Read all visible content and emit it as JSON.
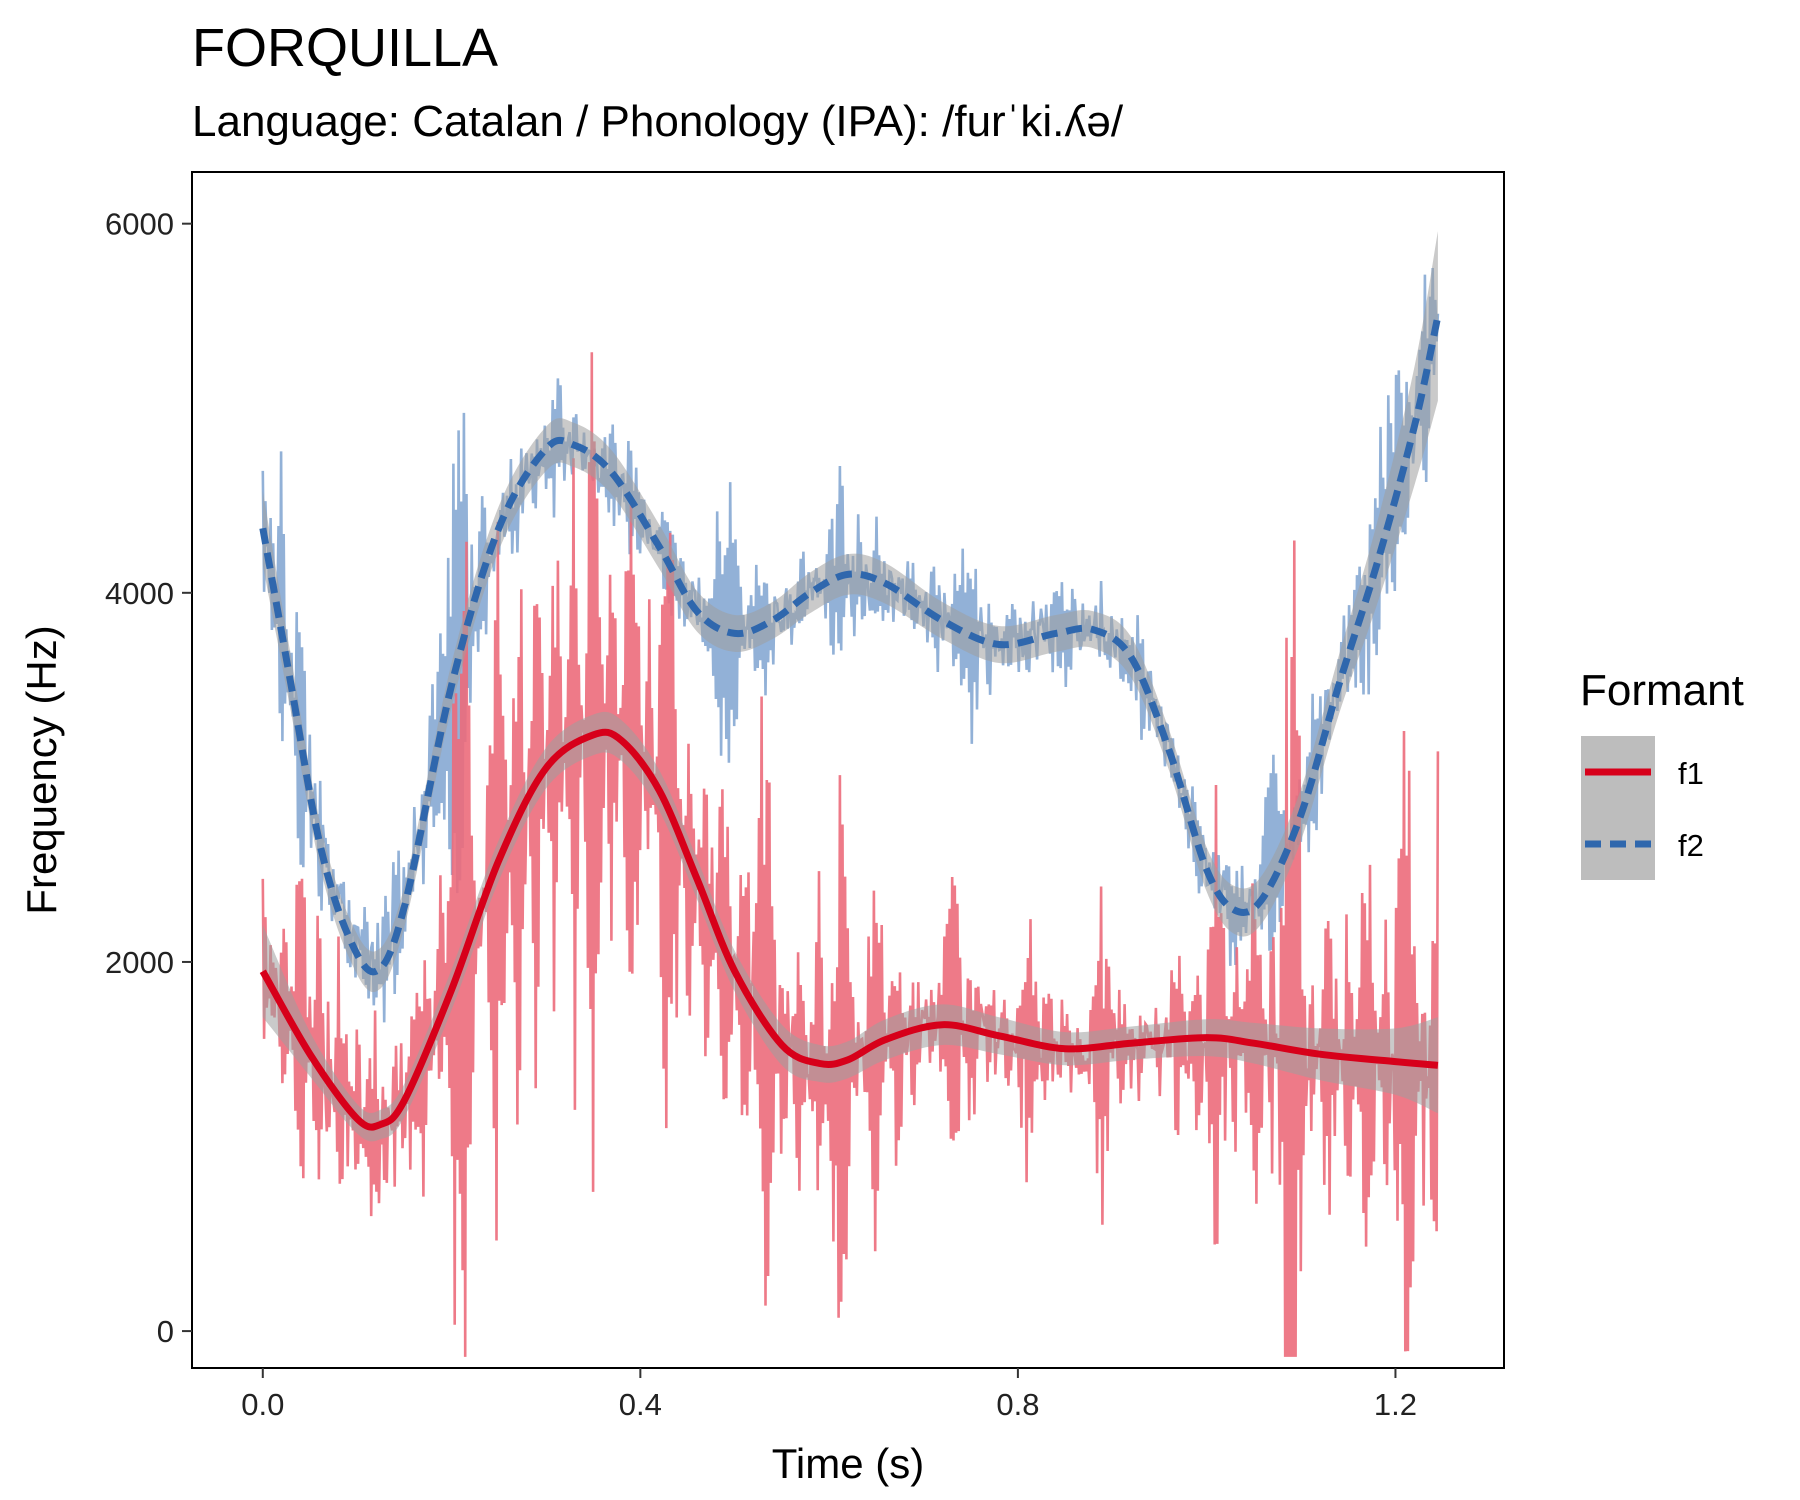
{
  "chart_data": {
    "type": "line",
    "title": "FORQUILLA",
    "subtitle": "Language: Catalan / Phonology (IPA): /furˈki.ʎə/",
    "xlabel": "Time (s)",
    "ylabel": "Frequency (Hz)",
    "xlim": [
      -0.075,
      1.315
    ],
    "ylim": [
      -200,
      6280
    ],
    "x_ticks": [
      0.0,
      0.4,
      0.8,
      1.2
    ],
    "x_tick_labels": [
      "0.0",
      "0.4",
      "0.8",
      "1.2"
    ],
    "y_ticks": [
      0,
      2000,
      4000,
      6000
    ],
    "y_tick_labels": [
      "0",
      "2000",
      "4000",
      "6000"
    ],
    "grid": false,
    "legend": {
      "title": "Formant",
      "position": "right",
      "entries": [
        {
          "label": "f1",
          "color": "#d7001a",
          "dash": "solid"
        },
        {
          "label": "f2",
          "color": "#2f67ad",
          "dash": "dashed"
        }
      ]
    },
    "colors": {
      "f1_raw": "#ec6b7b",
      "f2_raw": "#86a9d3",
      "f1_smooth": "#d7001a",
      "f2_smooth": "#2f67ad",
      "ribbon": "#9e9e9e"
    },
    "series": [
      {
        "name": "f1",
        "smooth": {
          "x": [
            0.0,
            0.05,
            0.1,
            0.125,
            0.15,
            0.2,
            0.25,
            0.3,
            0.35,
            0.38,
            0.42,
            0.46,
            0.5,
            0.55,
            0.59,
            0.62,
            0.66,
            0.72,
            0.78,
            0.85,
            0.92,
            1.0,
            1.05,
            1.12,
            1.2,
            1.245
          ],
          "y": [
            1950,
            1500,
            1150,
            1120,
            1250,
            1850,
            2550,
            3050,
            3230,
            3200,
            2930,
            2450,
            1950,
            1550,
            1450,
            1470,
            1580,
            1660,
            1600,
            1530,
            1560,
            1590,
            1560,
            1500,
            1460,
            1440
          ]
        },
        "ribbon_halfwidth": [
          250,
          120,
          80,
          80,
          90,
          110,
          110,
          110,
          110,
          110,
          110,
          110,
          110,
          110,
          100,
          100,
          110,
          110,
          100,
          90,
          90,
          100,
          110,
          140,
          180,
          260
        ],
        "raw": {
          "x": [
            0.0,
            0.01,
            0.02,
            0.03,
            0.04,
            0.05,
            0.06,
            0.07,
            0.08,
            0.09,
            0.1,
            0.11,
            0.12,
            0.13,
            0.14,
            0.15,
            0.17,
            0.19,
            0.21,
            0.23,
            0.25,
            0.27,
            0.29,
            0.31,
            0.33,
            0.35,
            0.37,
            0.39,
            0.41,
            0.43,
            0.45,
            0.47,
            0.49,
            0.51,
            0.53,
            0.55,
            0.57,
            0.59,
            0.61,
            0.63,
            0.65,
            0.67,
            0.69,
            0.71,
            0.73,
            0.75,
            0.77,
            0.79,
            0.81,
            0.83,
            0.85,
            0.87,
            0.89,
            0.91,
            0.93,
            0.95,
            0.97,
            0.99,
            1.01,
            1.03,
            1.05,
            1.07,
            1.09,
            1.11,
            1.13,
            1.15,
            1.17,
            1.19,
            1.21,
            1.23,
            1.245
          ],
          "y": [
            2600,
            1400,
            2300,
            1700,
            2900,
            1200,
            2500,
            800,
            2000,
            1500,
            600,
            1300,
            1800,
            700,
            1600,
            1400,
            2200,
            900,
            5000,
            1800,
            4800,
            900,
            4600,
            1500,
            5100,
            800,
            4500,
            1300,
            3900,
            600,
            3600,
            1200,
            3500,
            300,
            4000,
            900,
            2200,
            500,
            3200,
            1200,
            2600,
            900,
            2000,
            1300,
            2800,
            1100,
            1900,
            1300,
            2300,
            1200,
            1800,
            1400,
            2400,
            1100,
            1800,
            1300,
            2200,
            900,
            2900,
            1000,
            2700,
            800,
            4700,
            900,
            2500,
            700,
            2900,
            500,
            3600,
            800,
            3300
          ]
        }
      },
      {
        "name": "f2",
        "smooth": {
          "x": [
            0.0,
            0.03,
            0.06,
            0.09,
            0.12,
            0.15,
            0.2,
            0.25,
            0.3,
            0.33,
            0.37,
            0.42,
            0.46,
            0.5,
            0.54,
            0.58,
            0.62,
            0.66,
            0.72,
            0.78,
            0.84,
            0.88,
            0.92,
            0.96,
            1.0,
            1.03,
            1.06,
            1.1,
            1.14,
            1.18,
            1.22,
            1.245
          ],
          "y": [
            4350,
            3500,
            2650,
            2150,
            1950,
            2300,
            3500,
            4350,
            4780,
            4800,
            4650,
            4250,
            3900,
            3780,
            3850,
            4000,
            4100,
            4050,
            3850,
            3720,
            3780,
            3800,
            3650,
            3150,
            2500,
            2280,
            2350,
            2800,
            3500,
            4150,
            4900,
            5500
          ]
        },
        "ribbon_halfwidth": [
          200,
          150,
          120,
          110,
          110,
          110,
          120,
          120,
          120,
          120,
          120,
          120,
          110,
          100,
          100,
          110,
          110,
          110,
          100,
          100,
          100,
          100,
          110,
          110,
          120,
          130,
          130,
          140,
          160,
          220,
          320,
          460
        ],
        "raw": {
          "x": [
            0.0,
            0.01,
            0.02,
            0.03,
            0.04,
            0.05,
            0.06,
            0.07,
            0.08,
            0.09,
            0.1,
            0.11,
            0.12,
            0.13,
            0.14,
            0.15,
            0.17,
            0.19,
            0.21,
            0.23,
            0.25,
            0.27,
            0.29,
            0.31,
            0.33,
            0.35,
            0.37,
            0.39,
            0.41,
            0.43,
            0.45,
            0.47,
            0.49,
            0.51,
            0.53,
            0.55,
            0.57,
            0.59,
            0.61,
            0.63,
            0.65,
            0.67,
            0.69,
            0.71,
            0.73,
            0.75,
            0.77,
            0.79,
            0.81,
            0.83,
            0.85,
            0.87,
            0.89,
            0.91,
            0.93,
            0.95,
            0.97,
            0.99,
            1.01,
            1.03,
            1.05,
            1.07,
            1.09,
            1.11,
            1.13,
            1.15,
            1.17,
            1.19,
            1.21,
            1.23,
            1.245
          ],
          "y": [
            4900,
            3500,
            4700,
            3200,
            4300,
            2600,
            3100,
            2200,
            2400,
            1800,
            2100,
            1700,
            2200,
            1600,
            2600,
            2400,
            3000,
            3800,
            5100,
            3500,
            4500,
            4200,
            5000,
            4400,
            4900,
            4700,
            4400,
            4800,
            4200,
            4500,
            4000,
            3700,
            4900,
            3800,
            4300,
            3800,
            4200,
            3900,
            4700,
            3700,
            4400,
            3900,
            4200,
            3600,
            3900,
            4400,
            3500,
            4000,
            3600,
            3800,
            4100,
            3700,
            4000,
            3500,
            3900,
            3300,
            3000,
            2400,
            2600,
            1900,
            2300,
            1800,
            2800,
            2500,
            3300,
            3900,
            4400,
            4900,
            5200,
            4600,
            5300
          ]
        }
      }
    ]
  }
}
